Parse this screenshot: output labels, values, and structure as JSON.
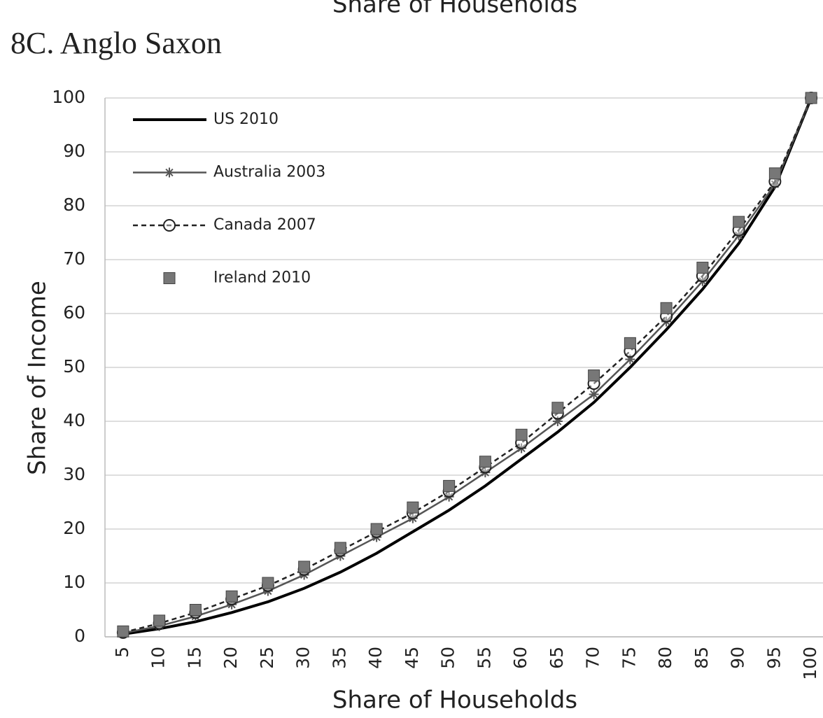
{
  "chart_data": {
    "type": "line",
    "clipped_caption": "Share of Households",
    "title": "8C. Anglo Saxon",
    "x_label": "Share of Households",
    "y_label": "Share of Income",
    "categories": [
      5,
      10,
      15,
      20,
      25,
      30,
      35,
      40,
      45,
      50,
      55,
      60,
      65,
      70,
      75,
      80,
      85,
      90,
      95,
      100
    ],
    "ylim": [
      0,
      100
    ],
    "yticks": [
      0,
      10,
      20,
      30,
      40,
      50,
      60,
      70,
      80,
      90,
      100
    ],
    "grid": true,
    "legend": "upper left",
    "series": [
      {
        "name": "US 2010",
        "color": "#000000",
        "line": "solid",
        "marker": "none",
        "values": [
          0.5,
          1.5,
          2.8,
          4.5,
          6.5,
          9,
          12,
          15.5,
          19.5,
          23.5,
          28,
          33,
          38,
          43.5,
          50,
          57,
          64.5,
          73,
          83.5,
          100
        ]
      },
      {
        "name": "Australia 2003",
        "color": "#555555",
        "line": "solid",
        "marker": "star",
        "values": [
          0.7,
          2,
          3.8,
          6,
          8.5,
          11.5,
          15,
          18.5,
          22,
          26,
          30.5,
          35,
          40,
          45,
          51.5,
          58.5,
          66,
          74.5,
          84,
          100
        ]
      },
      {
        "name": "Canada 2007",
        "color": "#222222",
        "line": "dashed",
        "marker": "circle",
        "values": [
          0.8,
          2.5,
          4.5,
          7,
          9.5,
          12.5,
          16,
          19.5,
          23,
          27,
          31.5,
          36,
          41.5,
          47,
          53,
          59.5,
          67,
          75.5,
          84.5,
          100
        ]
      },
      {
        "name": "Ireland 2010",
        "color": "#777777",
        "line": "none",
        "marker": "square",
        "values": [
          1,
          3,
          5,
          7.5,
          10,
          13,
          16.5,
          20,
          24,
          28,
          32.5,
          37.5,
          42.5,
          48.5,
          54.5,
          61,
          68.5,
          77,
          86,
          100
        ]
      }
    ]
  }
}
